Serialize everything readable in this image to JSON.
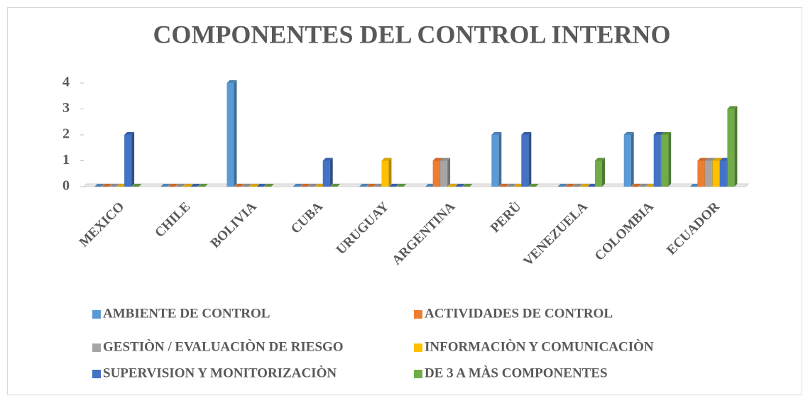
{
  "chart_data": {
    "type": "bar",
    "title": "COMPONENTES DEL CONTROL  INTERNO",
    "categories": [
      "MEXICO",
      "CHILE",
      "BOLIVIA",
      "CUBA",
      "URUGUAY",
      "ARGENTINA",
      "PERÙ",
      "VENEZUELA",
      "COLOMBIA",
      "ECUADOR"
    ],
    "series": [
      {
        "name": "AMBIENTE DE CONTROL",
        "color": "#5b9bd5",
        "values": [
          0,
          0,
          4,
          0,
          0,
          0,
          2,
          0,
          2,
          0
        ]
      },
      {
        "name": "ACTIVIDADES DE CONTROL",
        "color": "#ed7d31",
        "values": [
          0,
          0,
          0,
          0,
          0,
          1,
          0,
          0,
          0,
          1
        ]
      },
      {
        "name": "GESTIÒN / EVALUACIÒN DE RIESGO",
        "color": "#a5a5a5",
        "values": [
          0,
          0,
          0,
          0,
          0,
          1,
          0,
          0,
          0,
          1
        ]
      },
      {
        "name": "INFORMACIÒN Y COMUNICACIÒN",
        "color": "#ffc000",
        "values": [
          0,
          0,
          0,
          0,
          1,
          0,
          0,
          0,
          0,
          1
        ]
      },
      {
        "name": "SUPERVISION Y MONITORIZACIÒN",
        "color": "#4472c4",
        "values": [
          2,
          0,
          0,
          1,
          0,
          0,
          2,
          0,
          2,
          1
        ]
      },
      {
        "name": "DE 3 A MÀS COMPONENTES",
        "color": "#70ad47",
        "values": [
          0,
          0,
          0,
          0,
          0,
          0,
          0,
          1,
          2,
          3
        ]
      }
    ],
    "ylim": [
      0,
      4
    ],
    "yticks": [
      0,
      1,
      2,
      3,
      4
    ],
    "legend": "bottom"
  }
}
